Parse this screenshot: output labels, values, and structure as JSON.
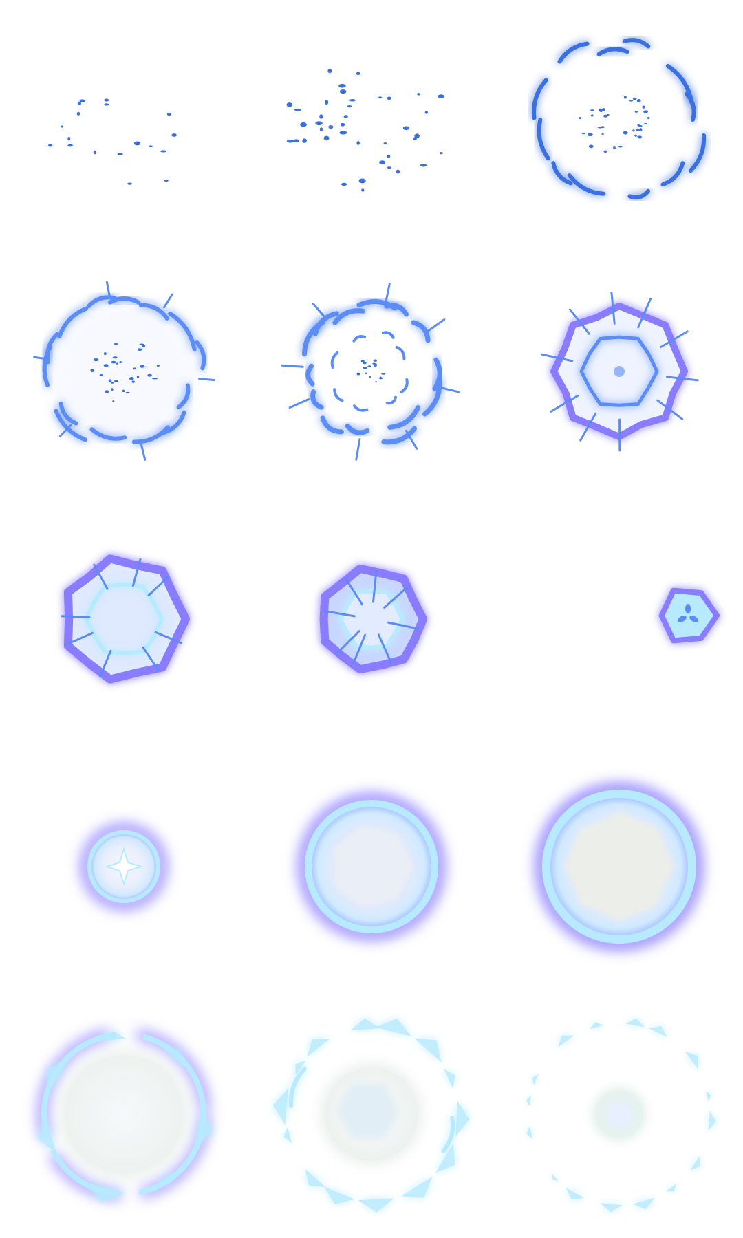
{
  "sprite_sheet": {
    "title": "",
    "background": "#ffffff",
    "grid": {
      "rows": 5,
      "cols": 3,
      "frame_count": 15
    },
    "palette": {
      "deep_blue": "#3a6fe0",
      "mid_blue": "#5b8cf5",
      "glow_violet": "#8a7cff",
      "ice_cyan": "#b7eaff",
      "core_white": "#f3f6ff",
      "mist": "#e6efe9"
    },
    "phases": [
      {
        "name": "sparks-gather",
        "frames": [
          1,
          2,
          3
        ]
      },
      {
        "name": "ring-forms",
        "frames": [
          4,
          5,
          6
        ]
      },
      {
        "name": "implosion",
        "frames": [
          7,
          8,
          9
        ]
      },
      {
        "name": "bubble-expand",
        "frames": [
          10,
          11,
          12
        ]
      },
      {
        "name": "shatter",
        "frames": [
          13,
          14,
          15
        ]
      }
    ]
  }
}
